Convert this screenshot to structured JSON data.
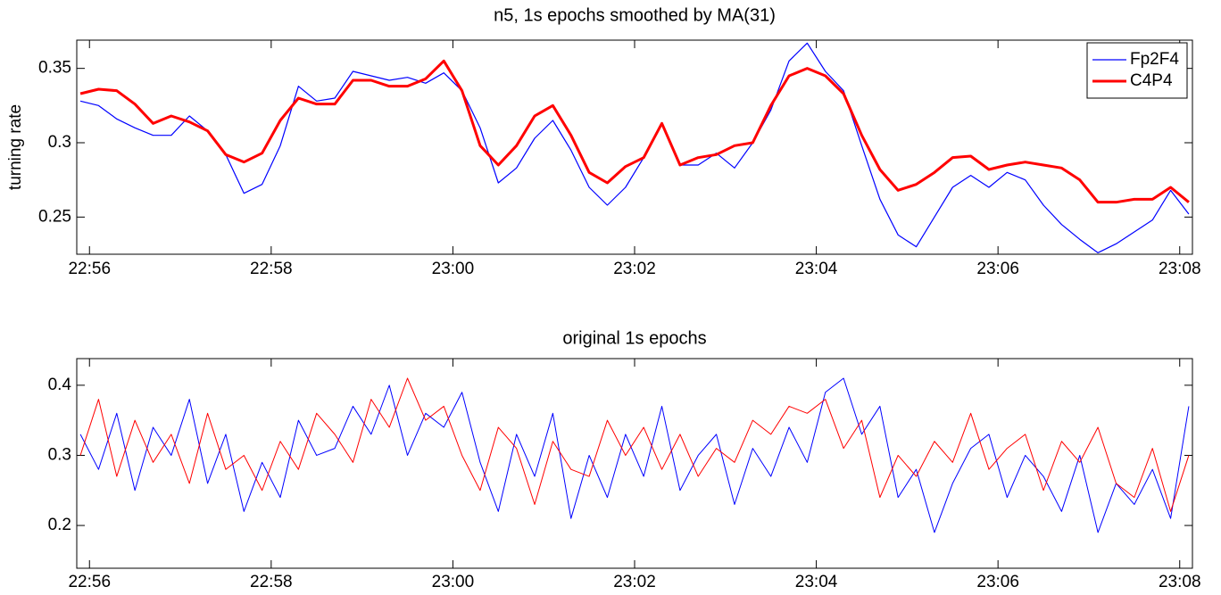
{
  "chart_data": [
    {
      "type": "line",
      "title": "n5, 1s epochs smoothed by MA(31)",
      "ylabel": "turning rate",
      "x": [
        1375.9,
        1376.1,
        1376.3,
        1376.5,
        1376.7,
        1376.9,
        1377.1,
        1377.3,
        1377.5,
        1377.7,
        1377.9,
        1378.1,
        1378.3,
        1378.5,
        1378.7,
        1378.9,
        1379.1,
        1379.3,
        1379.5,
        1379.7,
        1379.9,
        1380.1,
        1380.3,
        1380.5,
        1380.7,
        1380.9,
        1381.1,
        1381.3,
        1381.5,
        1381.7,
        1381.9,
        1382.1,
        1382.3,
        1382.5,
        1382.7,
        1382.9,
        1383.1,
        1383.3,
        1383.5,
        1383.7,
        1383.9,
        1384.1,
        1384.3,
        1384.5,
        1384.7,
        1384.9,
        1385.1,
        1385.3,
        1385.5,
        1385.7,
        1385.9,
        1386.1,
        1386.3,
        1386.5,
        1386.7,
        1386.9,
        1387.1,
        1387.3,
        1387.5,
        1387.7,
        1387.9,
        1388.1
      ],
      "series": [
        {
          "name": "Fp2F4",
          "color": "#0000ff",
          "line_width": 1.2,
          "values": [
            0.328,
            0.325,
            0.316,
            0.31,
            0.305,
            0.305,
            0.318,
            0.308,
            0.292,
            0.266,
            0.272,
            0.298,
            0.338,
            0.328,
            0.33,
            0.348,
            0.345,
            0.342,
            0.344,
            0.34,
            0.347,
            0.335,
            0.31,
            0.273,
            0.283,
            0.303,
            0.315,
            0.295,
            0.27,
            0.258,
            0.27,
            0.29,
            0.313,
            0.285,
            0.285,
            0.293,
            0.283,
            0.3,
            0.322,
            0.355,
            0.367,
            0.348,
            0.335,
            0.298,
            0.262,
            0.238,
            0.23,
            0.25,
            0.27,
            0.278,
            0.27,
            0.28,
            0.275,
            0.258,
            0.245,
            0.235,
            0.226,
            0.232,
            0.24,
            0.248,
            0.268,
            0.252
          ]
        },
        {
          "name": "C4P4",
          "color": "#ff0000",
          "line_width": 3,
          "values": [
            0.333,
            0.336,
            0.335,
            0.326,
            0.313,
            0.318,
            0.314,
            0.308,
            0.292,
            0.287,
            0.293,
            0.315,
            0.33,
            0.326,
            0.326,
            0.342,
            0.342,
            0.338,
            0.338,
            0.343,
            0.355,
            0.335,
            0.298,
            0.285,
            0.298,
            0.318,
            0.325,
            0.305,
            0.28,
            0.273,
            0.284,
            0.29,
            0.313,
            0.285,
            0.29,
            0.292,
            0.298,
            0.3,
            0.325,
            0.345,
            0.35,
            0.345,
            0.333,
            0.305,
            0.282,
            0.268,
            0.272,
            0.28,
            0.29,
            0.291,
            0.282,
            0.285,
            0.287,
            0.285,
            0.283,
            0.275,
            0.26,
            0.26,
            0.262,
            0.262,
            0.27,
            0.26
          ]
        }
      ],
      "xlim": [
        1375.86,
        1388.14
      ],
      "xticks": [
        {
          "value": 1376,
          "label": "22:56"
        },
        {
          "value": 1378,
          "label": "22:58"
        },
        {
          "value": 1380,
          "label": "23:00"
        },
        {
          "value": 1382,
          "label": "23:02"
        },
        {
          "value": 1384,
          "label": "23:04"
        },
        {
          "value": 1386,
          "label": "23:06"
        },
        {
          "value": 1388,
          "label": "23:08"
        }
      ],
      "ylim": [
        0.225,
        0.369
      ],
      "yticks": [
        0.25,
        0.3,
        0.35
      ],
      "legend": "northeast"
    },
    {
      "type": "line",
      "title": "original 1s epochs",
      "x": [
        1375.9,
        1376.1,
        1376.3,
        1376.5,
        1376.7,
        1376.9,
        1377.1,
        1377.3,
        1377.5,
        1377.7,
        1377.9,
        1378.1,
        1378.3,
        1378.5,
        1378.7,
        1378.9,
        1379.1,
        1379.3,
        1379.5,
        1379.7,
        1379.9,
        1380.1,
        1380.3,
        1380.5,
        1380.7,
        1380.9,
        1381.1,
        1381.3,
        1381.5,
        1381.7,
        1381.9,
        1382.1,
        1382.3,
        1382.5,
        1382.7,
        1382.9,
        1383.1,
        1383.3,
        1383.5,
        1383.7,
        1383.9,
        1384.1,
        1384.3,
        1384.5,
        1384.7,
        1384.9,
        1385.1,
        1385.3,
        1385.5,
        1385.7,
        1385.9,
        1386.1,
        1386.3,
        1386.5,
        1386.7,
        1386.9,
        1387.1,
        1387.3,
        1387.5,
        1387.7,
        1387.9,
        1388.1
      ],
      "series": [
        {
          "name": "Fp2F4",
          "color": "#0000ff",
          "line_width": 1,
          "values": [
            0.33,
            0.28,
            0.36,
            0.25,
            0.34,
            0.3,
            0.38,
            0.26,
            0.33,
            0.22,
            0.29,
            0.24,
            0.35,
            0.3,
            0.31,
            0.37,
            0.33,
            0.4,
            0.3,
            0.36,
            0.34,
            0.39,
            0.29,
            0.22,
            0.33,
            0.27,
            0.36,
            0.21,
            0.3,
            0.24,
            0.33,
            0.27,
            0.37,
            0.25,
            0.3,
            0.33,
            0.23,
            0.31,
            0.27,
            0.34,
            0.29,
            0.39,
            0.41,
            0.33,
            0.37,
            0.24,
            0.28,
            0.19,
            0.26,
            0.31,
            0.33,
            0.24,
            0.3,
            0.27,
            0.22,
            0.3,
            0.19,
            0.26,
            0.23,
            0.28,
            0.21,
            0.37
          ]
        },
        {
          "name": "C4P4",
          "color": "#ff0000",
          "line_width": 1,
          "values": [
            0.3,
            0.38,
            0.27,
            0.35,
            0.29,
            0.33,
            0.26,
            0.36,
            0.28,
            0.3,
            0.25,
            0.32,
            0.28,
            0.36,
            0.33,
            0.29,
            0.38,
            0.34,
            0.41,
            0.35,
            0.37,
            0.3,
            0.25,
            0.34,
            0.31,
            0.23,
            0.32,
            0.28,
            0.27,
            0.35,
            0.3,
            0.34,
            0.28,
            0.33,
            0.27,
            0.31,
            0.29,
            0.35,
            0.33,
            0.37,
            0.36,
            0.38,
            0.31,
            0.35,
            0.24,
            0.3,
            0.27,
            0.32,
            0.29,
            0.36,
            0.28,
            0.31,
            0.33,
            0.25,
            0.32,
            0.29,
            0.34,
            0.26,
            0.24,
            0.31,
            0.22,
            0.3
          ]
        }
      ],
      "xlim": [
        1375.86,
        1388.14
      ],
      "xticks": [
        {
          "value": 1376,
          "label": "22:56"
        },
        {
          "value": 1378,
          "label": "22:58"
        },
        {
          "value": 1380,
          "label": "23:00"
        },
        {
          "value": 1382,
          "label": "23:02"
        },
        {
          "value": 1384,
          "label": "23:04"
        },
        {
          "value": 1386,
          "label": "23:06"
        },
        {
          "value": 1388,
          "label": "23:08"
        }
      ],
      "ylim": [
        0.139,
        0.438
      ],
      "yticks": [
        0.2,
        0.3,
        0.4
      ]
    }
  ]
}
